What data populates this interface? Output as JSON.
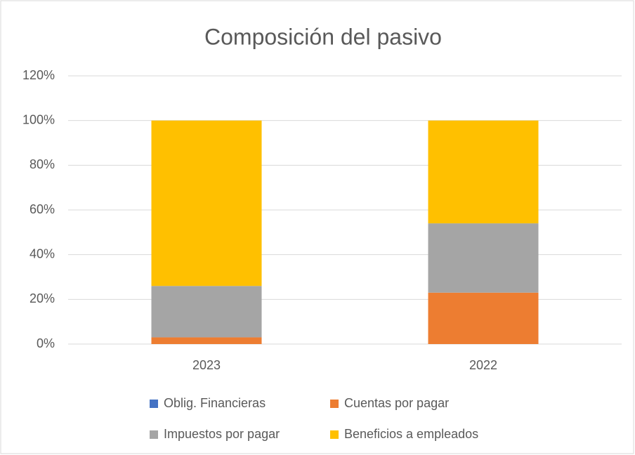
{
  "chart_data": {
    "type": "stacked_bar",
    "title": "Composición del pasivo",
    "categories": [
      "2023",
      "2022"
    ],
    "series": [
      {
        "name": "Oblig. Financieras",
        "color": "#4472c4",
        "values": [
          0,
          0
        ]
      },
      {
        "name": "Cuentas por pagar",
        "color": "#ed7d31",
        "values": [
          3,
          23
        ]
      },
      {
        "name": "Impuestos por pagar",
        "color": "#a5a5a5",
        "values": [
          23,
          31
        ]
      },
      {
        "name": "Beneficios a empleados",
        "color": "#ffc000",
        "values": [
          74,
          46
        ]
      }
    ],
    "ylim": [
      0,
      120
    ],
    "yticks": [
      {
        "value": 0,
        "label": "0%"
      },
      {
        "value": 20,
        "label": "20%"
      },
      {
        "value": 40,
        "label": "40%"
      },
      {
        "value": 60,
        "label": "60%"
      },
      {
        "value": 80,
        "label": "80%"
      },
      {
        "value": 100,
        "label": "100%"
      },
      {
        "value": 120,
        "label": "120%"
      }
    ],
    "grid": true,
    "legend": "bottom"
  }
}
